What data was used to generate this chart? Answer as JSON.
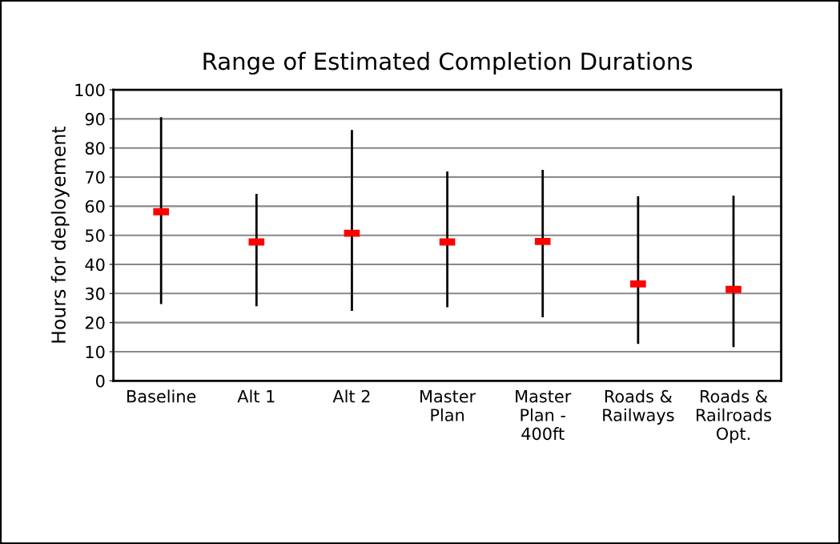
{
  "chart_data": {
    "type": "scatter",
    "title": "Range of Estimated Completion Durations",
    "ylabel": "Hours for deployement",
    "categories": [
      "Baseline",
      "Alt 1",
      "Alt 2",
      "Master\nPlan",
      "Master\nPlan -\n400ft",
      "Roads &\nRailways",
      "Roads &\nRailroads\nOpt."
    ],
    "series": [
      {
        "color": "#ff0000",
        "values": [
          58.1,
          47.7,
          50.7,
          47.7,
          47.9,
          33.3,
          31.4
        ],
        "errors": [
          [
            26.4,
            90.6
          ],
          [
            25.6,
            64.2
          ],
          [
            24.0,
            86.2
          ],
          [
            25.3,
            71.9
          ],
          [
            21.8,
            72.5
          ],
          [
            12.7,
            63.4
          ],
          [
            11.6,
            63.6
          ]
        ]
      }
    ],
    "ylim": [
      0,
      100
    ],
    "yticks": [
      0,
      10,
      20,
      30,
      40,
      50,
      60,
      70,
      80,
      90,
      100
    ],
    "grid": "y",
    "legend": false
  }
}
